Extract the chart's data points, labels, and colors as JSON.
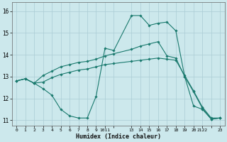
{
  "xlabel": "Humidex (Indice chaleur)",
  "bg_color": "#cce8ec",
  "grid_color": "#aaccd4",
  "line_color": "#1a7a6e",
  "xlim": [
    -0.5,
    23.5
  ],
  "ylim": [
    10.75,
    16.4
  ],
  "yticks": [
    11,
    12,
    13,
    14,
    15,
    16
  ],
  "xticks": [
    0,
    1,
    2,
    3,
    4,
    5,
    6,
    7,
    8,
    9,
    10,
    11,
    13,
    14,
    15,
    16,
    17,
    18,
    19,
    20,
    21,
    22,
    23
  ],
  "xtick_labels": [
    "0",
    "1",
    "2",
    "3",
    "4",
    "5",
    "6",
    "7",
    "8",
    "9",
    "1011",
    "",
    "13",
    "14",
    "15",
    "16",
    "17",
    "18",
    "19",
    "20",
    "2122",
    "",
    "23"
  ],
  "line1_x": [
    0,
    1,
    2,
    3,
    4,
    5,
    6,
    7,
    8,
    9,
    10,
    11,
    13,
    14,
    15,
    16,
    17,
    18,
    19,
    20,
    21,
    22,
    23
  ],
  "line1_y": [
    12.8,
    12.9,
    12.7,
    12.45,
    12.15,
    11.5,
    11.2,
    11.1,
    11.1,
    12.1,
    14.3,
    14.2,
    15.8,
    15.8,
    15.35,
    15.45,
    15.5,
    15.1,
    13.0,
    11.65,
    11.5,
    11.05,
    11.1
  ],
  "line2_x": [
    0,
    1,
    2,
    3,
    4,
    5,
    6,
    7,
    8,
    9,
    10,
    11,
    13,
    14,
    15,
    16,
    17,
    18,
    19,
    20,
    21,
    22,
    23
  ],
  "line2_y": [
    12.8,
    12.9,
    12.7,
    13.05,
    13.25,
    13.45,
    13.55,
    13.65,
    13.7,
    13.8,
    13.95,
    14.05,
    14.25,
    14.4,
    14.5,
    14.6,
    13.95,
    13.85,
    13.0,
    12.3,
    11.55,
    11.05,
    11.1
  ],
  "line3_x": [
    0,
    1,
    2,
    3,
    4,
    5,
    6,
    7,
    8,
    9,
    10,
    11,
    13,
    14,
    15,
    16,
    17,
    18,
    19,
    20,
    21,
    22,
    23
  ],
  "line3_y": [
    12.8,
    12.9,
    12.7,
    12.75,
    12.95,
    13.1,
    13.2,
    13.3,
    13.35,
    13.45,
    13.55,
    13.6,
    13.7,
    13.75,
    13.8,
    13.85,
    13.8,
    13.75,
    13.05,
    12.35,
    11.6,
    11.1,
    11.1
  ]
}
